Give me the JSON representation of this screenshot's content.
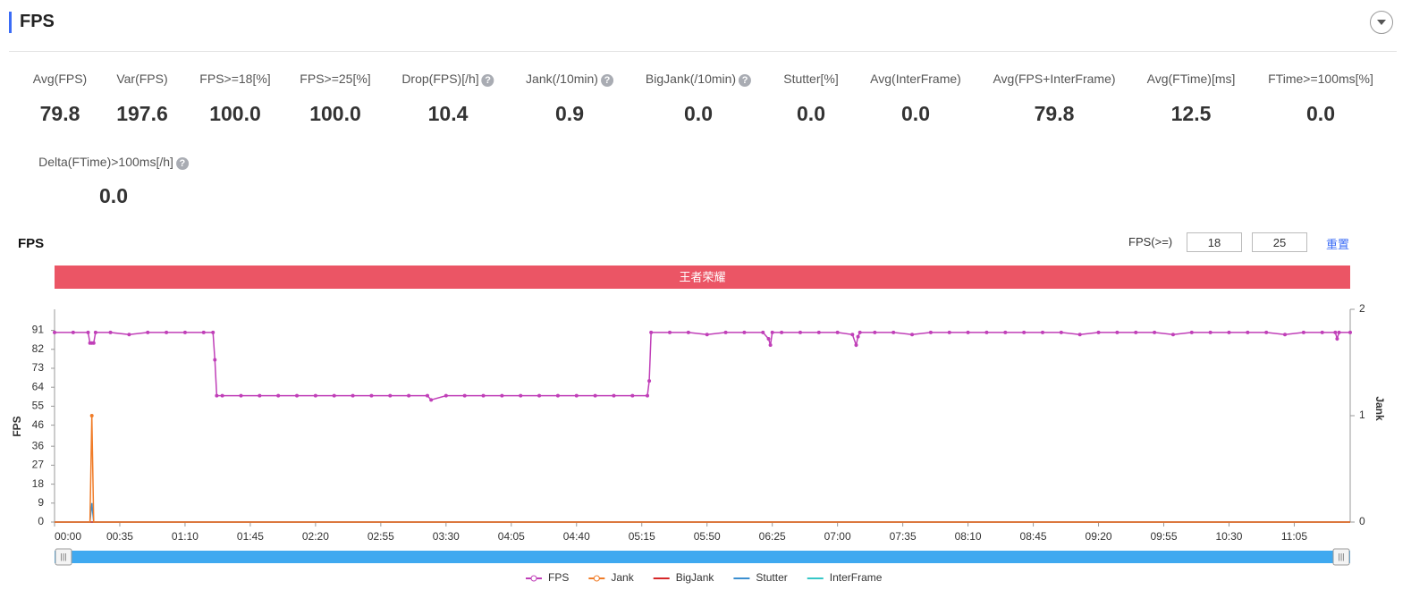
{
  "header": {
    "title": "FPS"
  },
  "metrics": [
    {
      "label": "Avg(FPS)",
      "value": "79.8"
    },
    {
      "label": "Var(FPS)",
      "value": "197.6"
    },
    {
      "label": "FPS>=18[%]",
      "value": "100.0"
    },
    {
      "label": "FPS>=25[%]",
      "value": "100.0"
    },
    {
      "label": "Drop(FPS)[/h]",
      "value": "10.4",
      "help": true
    },
    {
      "label": "Jank(/10min)",
      "value": "0.9",
      "help": true
    },
    {
      "label": "BigJank(/10min)",
      "value": "0.0",
      "help": true
    },
    {
      "label": "Stutter[%]",
      "value": "0.0"
    },
    {
      "label": "Avg(InterFrame)",
      "value": "0.0"
    },
    {
      "label": "Avg(FPS+InterFrame)",
      "value": "79.8"
    },
    {
      "label": "Avg(FTime)[ms]",
      "value": "12.5"
    },
    {
      "label": "FTime>=100ms[%]",
      "value": "0.0"
    },
    {
      "label": "Delta(FTime)>100ms[/h]",
      "value": "0.0",
      "help": true
    }
  ],
  "chart_header": {
    "title": "FPS",
    "threshold_label": "FPS(>=)",
    "thresholds": [
      18,
      25
    ],
    "reset": "重置"
  },
  "chart_data": {
    "type": "line",
    "band_label": "王者荣耀",
    "band_color": "#eb5565",
    "ylabel": "FPS",
    "y2label": "Jank",
    "xlim": [
      0,
      695
    ],
    "xticks": [
      {
        "value": 0,
        "label": "00:00"
      },
      {
        "value": 35,
        "label": "00:35"
      },
      {
        "value": 70,
        "label": "01:10"
      },
      {
        "value": 105,
        "label": "01:45"
      },
      {
        "value": 140,
        "label": "02:20"
      },
      {
        "value": 175,
        "label": "02:55"
      },
      {
        "value": 210,
        "label": "03:30"
      },
      {
        "value": 245,
        "label": "04:05"
      },
      {
        "value": 280,
        "label": "04:40"
      },
      {
        "value": 315,
        "label": "05:15"
      },
      {
        "value": 350,
        "label": "05:50"
      },
      {
        "value": 385,
        "label": "06:25"
      },
      {
        "value": 420,
        "label": "07:00"
      },
      {
        "value": 455,
        "label": "07:35"
      },
      {
        "value": 490,
        "label": "08:10"
      },
      {
        "value": 525,
        "label": "08:45"
      },
      {
        "value": 560,
        "label": "09:20"
      },
      {
        "value": 595,
        "label": "09:55"
      },
      {
        "value": 630,
        "label": "10:30"
      },
      {
        "value": 665,
        "label": "11:05"
      }
    ],
    "ylim": [
      0,
      101
    ],
    "yticks": [
      0,
      9,
      18,
      27,
      36,
      46,
      55,
      64,
      73,
      82,
      91
    ],
    "y2lim": [
      0,
      2
    ],
    "y2ticks": [
      0,
      1,
      2
    ],
    "series": [
      {
        "name": "FPS",
        "color": "#c03fb8",
        "markers": true,
        "x": [
          0,
          10,
          18,
          19,
          20,
          21,
          22,
          30,
          40,
          50,
          60,
          70,
          80,
          85,
          86,
          87,
          90,
          100,
          110,
          120,
          130,
          140,
          150,
          160,
          170,
          180,
          190,
          200,
          202,
          210,
          220,
          230,
          240,
          250,
          260,
          270,
          280,
          290,
          300,
          310,
          318,
          319,
          320,
          330,
          340,
          350,
          360,
          370,
          380,
          383,
          384,
          385,
          390,
          400,
          410,
          420,
          428,
          430,
          431,
          432,
          440,
          450,
          460,
          470,
          480,
          490,
          500,
          510,
          520,
          530,
          540,
          550,
          560,
          570,
          580,
          590,
          600,
          610,
          620,
          630,
          640,
          650,
          660,
          670,
          680,
          687,
          688,
          689,
          695
        ],
        "values": [
          90,
          90,
          90,
          85,
          85,
          85,
          90,
          90,
          89,
          90,
          90,
          90,
          90,
          90,
          77,
          60,
          60,
          60,
          60,
          60,
          60,
          60,
          60,
          60,
          60,
          60,
          60,
          60,
          58,
          60,
          60,
          60,
          60,
          60,
          60,
          60,
          60,
          60,
          60,
          60,
          60,
          67,
          90,
          90,
          90,
          89,
          90,
          90,
          90,
          87,
          84,
          90,
          90,
          90,
          90,
          90,
          89,
          84,
          88,
          90,
          90,
          90,
          89,
          90,
          90,
          90,
          90,
          90,
          90,
          90,
          90,
          89,
          90,
          90,
          90,
          90,
          89,
          90,
          90,
          90,
          90,
          90,
          89,
          90,
          90,
          90,
          87,
          90,
          90
        ]
      },
      {
        "name": "Jank",
        "color": "#f07c28",
        "axis": "y2",
        "markers": true,
        "x": [
          0,
          19,
          20,
          21,
          695
        ],
        "values": [
          0,
          0,
          1,
          0,
          0
        ]
      },
      {
        "name": "BigJank",
        "color": "#d62728",
        "x": [
          0,
          695
        ],
        "values": [
          0,
          0
        ]
      },
      {
        "name": "Stutter",
        "color": "#3b8fd0",
        "x": [
          0,
          19,
          20,
          21,
          695
        ],
        "values": [
          0,
          0,
          9,
          0,
          0
        ]
      },
      {
        "name": "InterFrame",
        "color": "#36c7c7",
        "x": [
          0,
          695
        ],
        "values": [
          0,
          0
        ]
      }
    ]
  }
}
